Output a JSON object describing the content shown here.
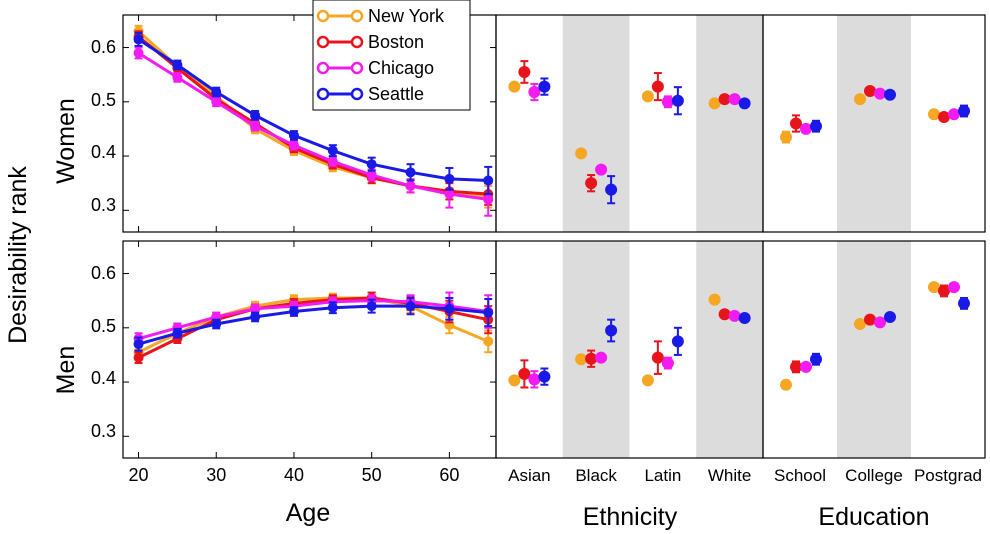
{
  "figure": {
    "y_axis_title": "Desirability rank",
    "row_labels": [
      "Women",
      "Men"
    ],
    "y_ticks": [
      "0.6",
      "0.5",
      "0.4",
      "0.3"
    ]
  },
  "chart_data": [
    {
      "type": "line",
      "panel": "women-age",
      "xlabel": "Age",
      "ylabel": "Women",
      "xlim": [
        18,
        66
      ],
      "ylim": [
        0.26,
        0.66
      ],
      "x": [
        20,
        25,
        30,
        35,
        40,
        45,
        50,
        55,
        60,
        65
      ],
      "x_tick_labels": [
        "20",
        "30",
        "40",
        "50",
        "60"
      ],
      "series": [
        {
          "name": "New York",
          "color": "#F5A623",
          "values": [
            0.63,
            0.565,
            0.51,
            0.45,
            0.41,
            0.38,
            0.36,
            0.345,
            0.335,
            0.325
          ],
          "err": [
            0.01,
            0.008,
            0.008,
            0.008,
            0.008,
            0.008,
            0.01,
            0.012,
            0.015,
            0.02
          ]
        },
        {
          "name": "Boston",
          "color": "#E8141B",
          "values": [
            0.62,
            0.562,
            0.505,
            0.46,
            0.415,
            0.385,
            0.36,
            0.345,
            0.335,
            0.33
          ],
          "err": [
            0.01,
            0.008,
            0.008,
            0.008,
            0.008,
            0.008,
            0.01,
            0.012,
            0.015,
            0.02
          ]
        },
        {
          "name": "Chicago",
          "color": "#F21CF2",
          "values": [
            0.59,
            0.545,
            0.5,
            0.455,
            0.42,
            0.39,
            0.365,
            0.345,
            0.33,
            0.32
          ],
          "err": [
            0.01,
            0.008,
            0.008,
            0.008,
            0.008,
            0.008,
            0.01,
            0.012,
            0.025,
            0.03
          ]
        },
        {
          "name": "Seattle",
          "color": "#1A1AE6",
          "values": [
            0.615,
            0.568,
            0.518,
            0.475,
            0.438,
            0.41,
            0.385,
            0.37,
            0.358,
            0.355
          ],
          "err": [
            0.012,
            0.008,
            0.008,
            0.008,
            0.008,
            0.01,
            0.012,
            0.015,
            0.02,
            0.025
          ]
        }
      ]
    },
    {
      "type": "line",
      "panel": "men-age",
      "xlabel": "Age",
      "ylabel": "Men",
      "xlim": [
        18,
        66
      ],
      "ylim": [
        0.26,
        0.66
      ],
      "x": [
        20,
        25,
        30,
        35,
        40,
        45,
        50,
        55,
        60,
        65
      ],
      "x_tick_labels": [
        "20",
        "30",
        "40",
        "50",
        "60"
      ],
      "series": [
        {
          "name": "New York",
          "color": "#F5A623",
          "values": [
            0.455,
            0.49,
            0.52,
            0.54,
            0.552,
            0.555,
            0.555,
            0.54,
            0.505,
            0.475
          ],
          "err": [
            0.01,
            0.008,
            0.008,
            0.008,
            0.008,
            0.008,
            0.01,
            0.012,
            0.015,
            0.02
          ]
        },
        {
          "name": "Boston",
          "color": "#E8141B",
          "values": [
            0.445,
            0.48,
            0.515,
            0.535,
            0.545,
            0.552,
            0.555,
            0.545,
            0.53,
            0.515
          ],
          "err": [
            0.01,
            0.008,
            0.008,
            0.008,
            0.008,
            0.008,
            0.01,
            0.012,
            0.02,
            0.025
          ]
        },
        {
          "name": "Chicago",
          "color": "#F21CF2",
          "values": [
            0.48,
            0.5,
            0.52,
            0.535,
            0.54,
            0.548,
            0.55,
            0.548,
            0.54,
            0.53
          ],
          "err": [
            0.01,
            0.008,
            0.008,
            0.008,
            0.008,
            0.008,
            0.01,
            0.012,
            0.025,
            0.03
          ]
        },
        {
          "name": "Seattle",
          "color": "#1A1AE6",
          "values": [
            0.47,
            0.49,
            0.507,
            0.52,
            0.53,
            0.537,
            0.54,
            0.54,
            0.535,
            0.528
          ],
          "err": [
            0.012,
            0.008,
            0.008,
            0.008,
            0.008,
            0.01,
            0.012,
            0.015,
            0.02,
            0.025
          ]
        }
      ]
    },
    {
      "type": "scatter",
      "panel": "women-ethnicity",
      "xlabel": "Ethnicity",
      "ylabel": "Women",
      "ylim": [
        0.26,
        0.66
      ],
      "categories": [
        "Asian",
        "Black",
        "Latin",
        "White"
      ],
      "shaded_categories": [
        "Black",
        "White"
      ],
      "series": [
        {
          "name": "New York",
          "color": "#F5A623",
          "values": [
            0.528,
            0.405,
            0.51,
            0.497
          ],
          "err": [
            0.0,
            0.0,
            0.0,
            0.0
          ]
        },
        {
          "name": "Boston",
          "color": "#E8141B",
          "values": [
            0.555,
            0.35,
            0.528,
            0.505
          ],
          "err": [
            0.02,
            0.015,
            0.025,
            0.0
          ]
        },
        {
          "name": "Chicago",
          "color": "#F21CF2",
          "values": [
            0.518,
            0.375,
            0.5,
            0.505
          ],
          "err": [
            0.015,
            0.0,
            0.01,
            0.0
          ]
        },
        {
          "name": "Seattle",
          "color": "#1A1AE6",
          "values": [
            0.528,
            0.338,
            0.502,
            0.497
          ],
          "err": [
            0.015,
            0.025,
            0.025,
            0.0
          ]
        }
      ]
    },
    {
      "type": "scatter",
      "panel": "men-ethnicity",
      "xlabel": "Ethnicity",
      "ylabel": "Men",
      "ylim": [
        0.26,
        0.66
      ],
      "categories": [
        "Asian",
        "Black",
        "Latin",
        "White"
      ],
      "shaded_categories": [
        "Black",
        "White"
      ],
      "series": [
        {
          "name": "New York",
          "color": "#F5A623",
          "values": [
            0.403,
            0.442,
            0.403,
            0.552
          ],
          "err": [
            0.0,
            0.0,
            0.0,
            0.0
          ]
        },
        {
          "name": "Boston",
          "color": "#E8141B",
          "values": [
            0.415,
            0.443,
            0.445,
            0.525
          ],
          "err": [
            0.025,
            0.015,
            0.03,
            0.0
          ]
        },
        {
          "name": "Chicago",
          "color": "#F21CF2",
          "values": [
            0.405,
            0.445,
            0.435,
            0.522
          ],
          "err": [
            0.015,
            0.0,
            0.01,
            0.0
          ]
        },
        {
          "name": "Seattle",
          "color": "#1A1AE6",
          "values": [
            0.41,
            0.495,
            0.475,
            0.518
          ],
          "err": [
            0.015,
            0.02,
            0.025,
            0.0
          ]
        }
      ]
    },
    {
      "type": "scatter",
      "panel": "women-education",
      "xlabel": "Education",
      "ylabel": "Women",
      "ylim": [
        0.26,
        0.66
      ],
      "categories": [
        "School",
        "College",
        "Postgrad"
      ],
      "shaded_categories": [
        "College"
      ],
      "series": [
        {
          "name": "New York",
          "color": "#F5A623",
          "values": [
            0.435,
            0.505,
            0.477
          ],
          "err": [
            0.01,
            0.0,
            0.0
          ]
        },
        {
          "name": "Boston",
          "color": "#E8141B",
          "values": [
            0.46,
            0.52,
            0.472
          ],
          "err": [
            0.015,
            0.0,
            0.0
          ]
        },
        {
          "name": "Chicago",
          "color": "#F21CF2",
          "values": [
            0.45,
            0.515,
            0.477
          ],
          "err": [
            0.0,
            0.0,
            0.0
          ]
        },
        {
          "name": "Seattle",
          "color": "#1A1AE6",
          "values": [
            0.455,
            0.513,
            0.483
          ],
          "err": [
            0.01,
            0.0,
            0.01
          ]
        }
      ]
    },
    {
      "type": "scatter",
      "panel": "men-education",
      "xlabel": "Education",
      "ylabel": "Men",
      "ylim": [
        0.26,
        0.66
      ],
      "categories": [
        "School",
        "College",
        "Postgrad"
      ],
      "shaded_categories": [
        "College"
      ],
      "series": [
        {
          "name": "New York",
          "color": "#F5A623",
          "values": [
            0.395,
            0.507,
            0.575
          ],
          "err": [
            0.0,
            0.0,
            0.0
          ]
        },
        {
          "name": "Boston",
          "color": "#E8141B",
          "values": [
            0.428,
            0.515,
            0.568
          ],
          "err": [
            0.01,
            0.0,
            0.01
          ]
        },
        {
          "name": "Chicago",
          "color": "#F21CF2",
          "values": [
            0.428,
            0.51,
            0.575
          ],
          "err": [
            0.0,
            0.0,
            0.0
          ]
        },
        {
          "name": "Seattle",
          "color": "#1A1AE6",
          "values": [
            0.442,
            0.52,
            0.545
          ],
          "err": [
            0.01,
            0.0,
            0.01
          ]
        }
      ]
    }
  ],
  "legend": [
    {
      "label": "New York",
      "color": "#F5A623"
    },
    {
      "label": "Boston",
      "color": "#E8141B"
    },
    {
      "label": "Chicago",
      "color": "#F21CF2"
    },
    {
      "label": "Seattle",
      "color": "#1A1AE6"
    }
  ]
}
